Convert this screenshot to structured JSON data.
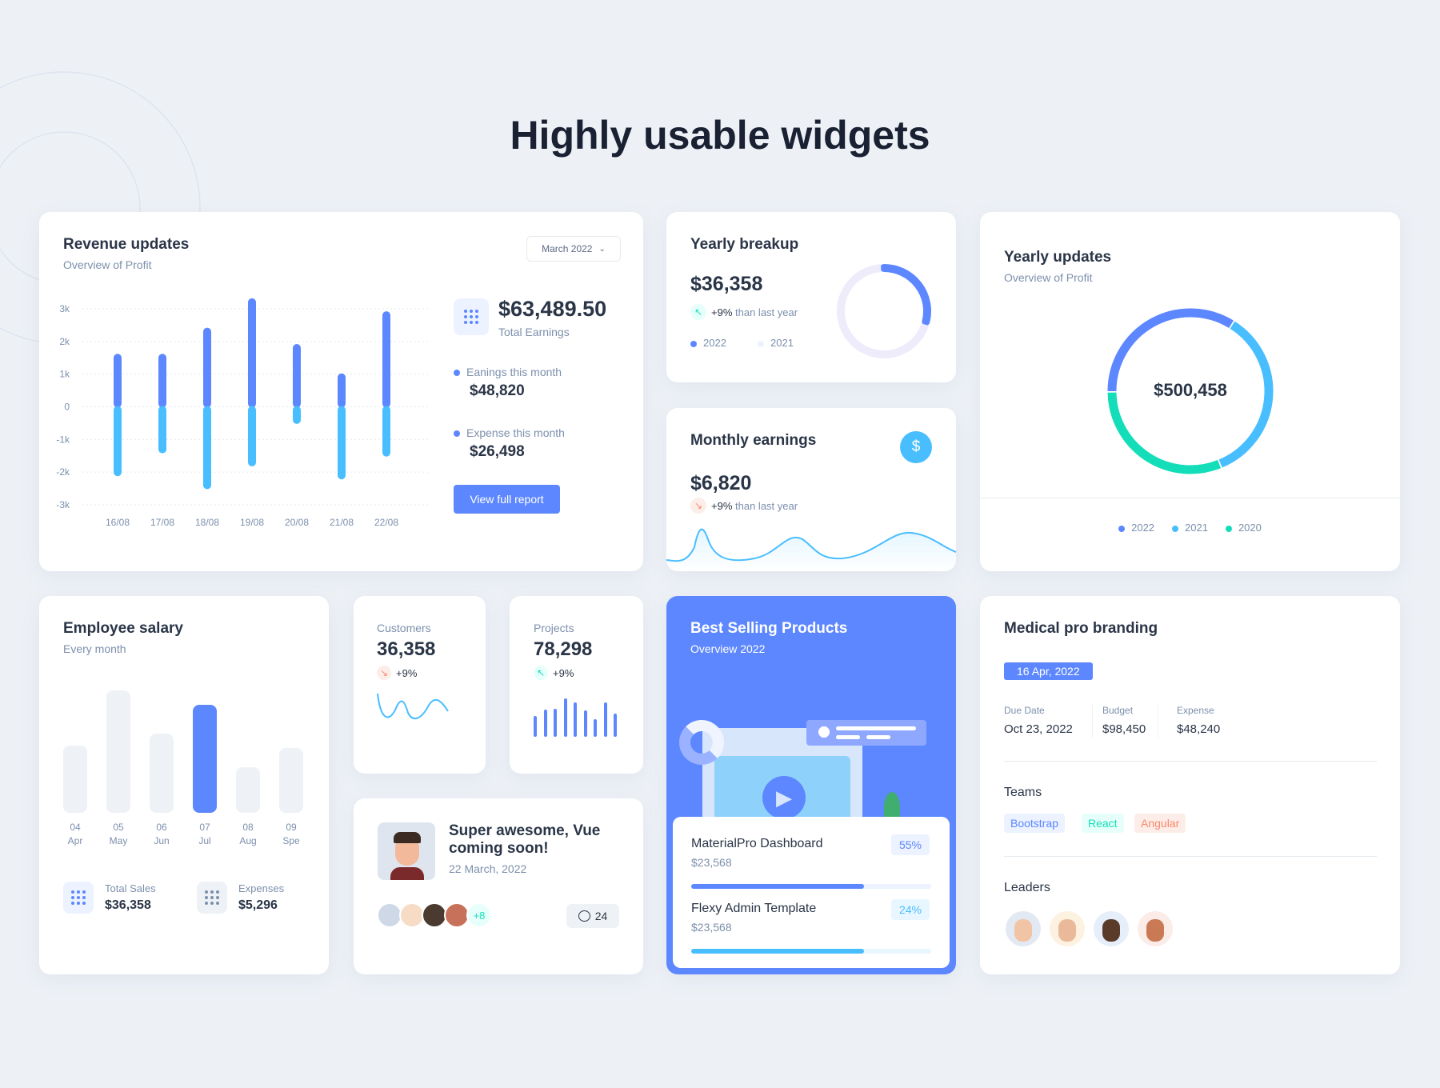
{
  "page_title": "Highly usable widgets",
  "colors": {
    "primary": "#5d87ff",
    "secondary": "#49beff",
    "success": "#13deb9",
    "danger": "#fa896b",
    "text": "#2a3547",
    "muted": "#7c8fac"
  },
  "revenue": {
    "title": "Revenue updates",
    "subtitle": "Overview of Profit",
    "period_select": "March 2022",
    "total_value": "$63,489.50",
    "total_label": "Total Earnings",
    "earnings_label": "Eanings this month",
    "earnings_value": "$48,820",
    "expense_label": "Expense this month",
    "expense_value": "$26,498",
    "report_button": "View full report",
    "chart_data": {
      "type": "bar",
      "categories": [
        "16/08",
        "17/08",
        "18/08",
        "19/08",
        "20/08",
        "21/08",
        "22/08"
      ],
      "y_ticks": [
        "3k",
        "2k",
        "1k",
        "0",
        "-1k",
        "-2k",
        "-3k"
      ],
      "ylim": [
        -3000,
        3000
      ],
      "grid": true,
      "series": [
        {
          "values": [
            1500,
            1500,
            2300,
            3200,
            1800,
            900,
            2800
          ],
          "color": "#5d87ff"
        },
        {
          "values": [
            -2000,
            -1300,
            -2400,
            -1700,
            -400,
            -2100,
            -1400
          ],
          "color": "#49beff"
        }
      ]
    }
  },
  "yearly_breakup": {
    "title": "Yearly breakup",
    "value": "$36,358",
    "change": "+9%",
    "change_text": "than last year",
    "legend": [
      {
        "label": "2022",
        "color": "#5d87ff"
      },
      {
        "label": "2021",
        "color": "#ecf2ff"
      }
    ],
    "donut_fractions": [
      0.3,
      0.7
    ]
  },
  "monthly_earnings": {
    "title": "Monthly earnings",
    "value": "$6,820",
    "change": "+9%",
    "change_text": "than last year",
    "icon": "dollar-icon"
  },
  "yearly_updates": {
    "title": "Yearly updates",
    "subtitle": "Overview of Profit",
    "center_value": "$500,458",
    "segments": [
      {
        "label": "2022",
        "fraction": 0.34,
        "color": "#5d87ff"
      },
      {
        "label": "2021",
        "fraction": 0.35,
        "color": "#49beff"
      },
      {
        "label": "2020",
        "fraction": 0.31,
        "color": "#13deb9"
      }
    ]
  },
  "employee_salary": {
    "title": "Employee salary",
    "subtitle": "Every month",
    "bars": [
      {
        "num": "04",
        "month": "Apr",
        "value": 55,
        "active": false
      },
      {
        "num": "05",
        "month": "May",
        "value": 100,
        "active": false
      },
      {
        "num": "06",
        "month": "Jun",
        "value": 65,
        "active": false
      },
      {
        "num": "07",
        "month": "Jul",
        "value": 88,
        "active": true
      },
      {
        "num": "08",
        "month": "Aug",
        "value": 37,
        "active": false
      },
      {
        "num": "09",
        "month": "Spe",
        "value": 53,
        "active": false
      }
    ],
    "total_sales_label": "Total Sales",
    "total_sales_value": "$36,358",
    "expenses_label": "Expenses",
    "expenses_value": "$5,296"
  },
  "customers": {
    "label": "Customers",
    "value": "36,358",
    "change": "+9%"
  },
  "projects": {
    "label": "Projects",
    "value": "78,298",
    "change": "+9%",
    "bars": [
      0.55,
      0.7,
      0.72,
      1.0,
      0.9,
      0.68,
      0.45,
      0.9,
      0.6
    ]
  },
  "post": {
    "title": "Super awesome, Vue coming soon!",
    "date": "22 March, 2022",
    "more_count": "+8",
    "comments": "24"
  },
  "best_selling": {
    "title": "Best Selling Products",
    "subtitle": "Overview 2022",
    "products": [
      {
        "name": "MaterialPro Dashboard",
        "price": "$23,568",
        "percent": "55%",
        "progress": 0.72,
        "color": "#5d87ff"
      },
      {
        "name": "Flexy Admin Template",
        "price": "$23,568",
        "percent": "24%",
        "progress": 0.72,
        "color": "#49beff"
      }
    ]
  },
  "medical": {
    "title": "Medical pro branding",
    "date_badge": "16 Apr, 2022",
    "due_label": "Due Date",
    "due_value": "Oct 23, 2022",
    "budget_label": "Budget",
    "budget_value": "$98,450",
    "expense_label": "Expense",
    "expense_value": "$48,240",
    "teams_label": "Teams",
    "teams": [
      "Bootstrap",
      "React",
      "Angular"
    ],
    "leaders_label": "Leaders"
  }
}
